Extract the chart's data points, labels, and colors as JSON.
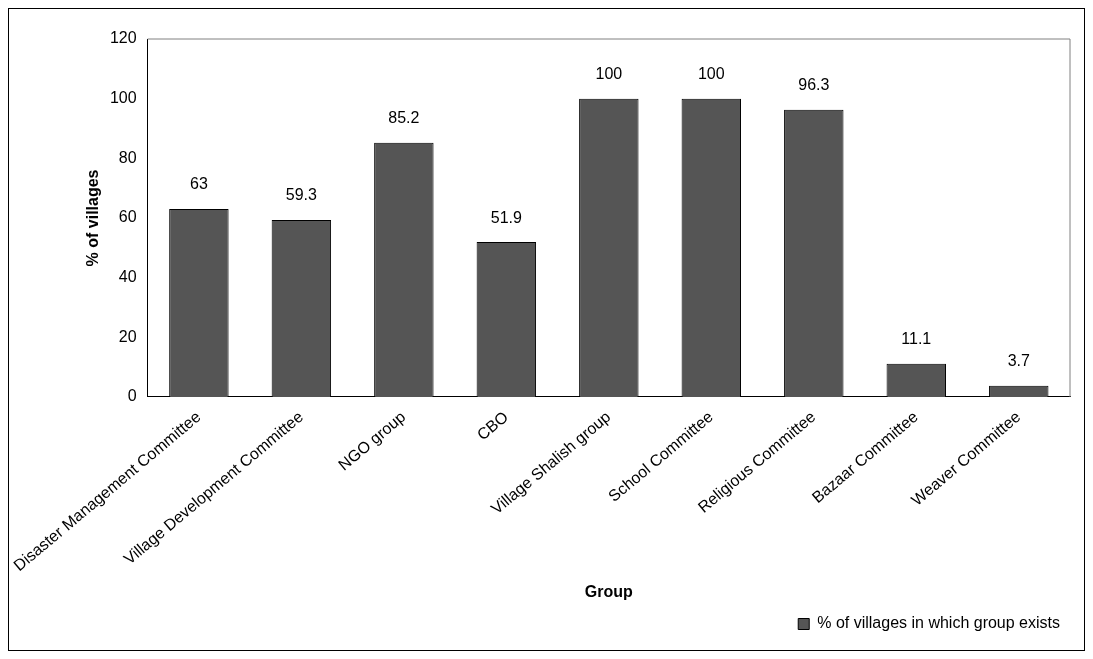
{
  "chart_data": {
    "type": "bar",
    "xlabel": "Group",
    "ylabel": "% of villages",
    "categories": [
      "Disaster Management Committee",
      "Village Development Committee",
      "NGO group",
      "CBO",
      "Village Shalish group",
      "School Committee",
      "Religious Committee",
      "Bazaar Committee",
      "Weaver Committee"
    ],
    "series": [
      {
        "name": "% of villages in which group exists",
        "color": "#555555",
        "values": [
          63,
          59.3,
          85.2,
          51.9,
          100,
          100,
          96.3,
          11.1,
          3.7
        ]
      }
    ],
    "ylim": [
      0,
      120
    ],
    "yticks": [
      0,
      20,
      40,
      60,
      80,
      100,
      120
    ],
    "grid": false,
    "legend": "bottom right",
    "data_labels": true
  }
}
